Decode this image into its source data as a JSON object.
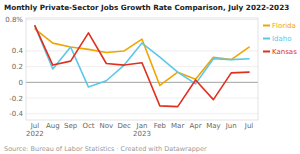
{
  "chart_data": {
    "type": "line",
    "title": "Monthly Private-Sector Jobs Growth Rate Comparison, July 2022-2023",
    "source": "Source: Bureau of Labor Statistics · Created with Datawrapper",
    "categories": [
      "Jul\n2022",
      "Aug",
      "Sep",
      "Oct",
      "Nov",
      "Dec",
      "Jan\n2023",
      "Feb",
      "Mar",
      "Apr",
      "May",
      "Jun",
      "Jul"
    ],
    "series": [
      {
        "name": "Florida",
        "color": "#f0a500",
        "values": [
          0.68,
          0.5,
          0.45,
          0.42,
          0.38,
          0.4,
          0.55,
          -0.04,
          0.13,
          0.04,
          0.32,
          0.29,
          0.45
        ]
      },
      {
        "name": "Idaho",
        "color": "#5bc8e8",
        "values": [
          0.72,
          0.17,
          0.45,
          -0.06,
          0.02,
          0.22,
          0.5,
          0.32,
          0.13,
          -0.02,
          0.3,
          0.29,
          0.3
        ]
      },
      {
        "name": "Kansas",
        "color": "#e03020",
        "values": [
          0.72,
          0.22,
          0.27,
          0.63,
          0.24,
          0.22,
          0.25,
          -0.3,
          -0.31,
          0.03,
          -0.22,
          0.12,
          0.13
        ]
      }
    ],
    "ylim": [
      -0.48,
      0.82
    ],
    "yticks": [
      -0.4,
      -0.2,
      0,
      0.2,
      0.4,
      {
        "value": 0.8,
        "label": "0.8%"
      }
    ],
    "grid": true,
    "legend": "right"
  }
}
